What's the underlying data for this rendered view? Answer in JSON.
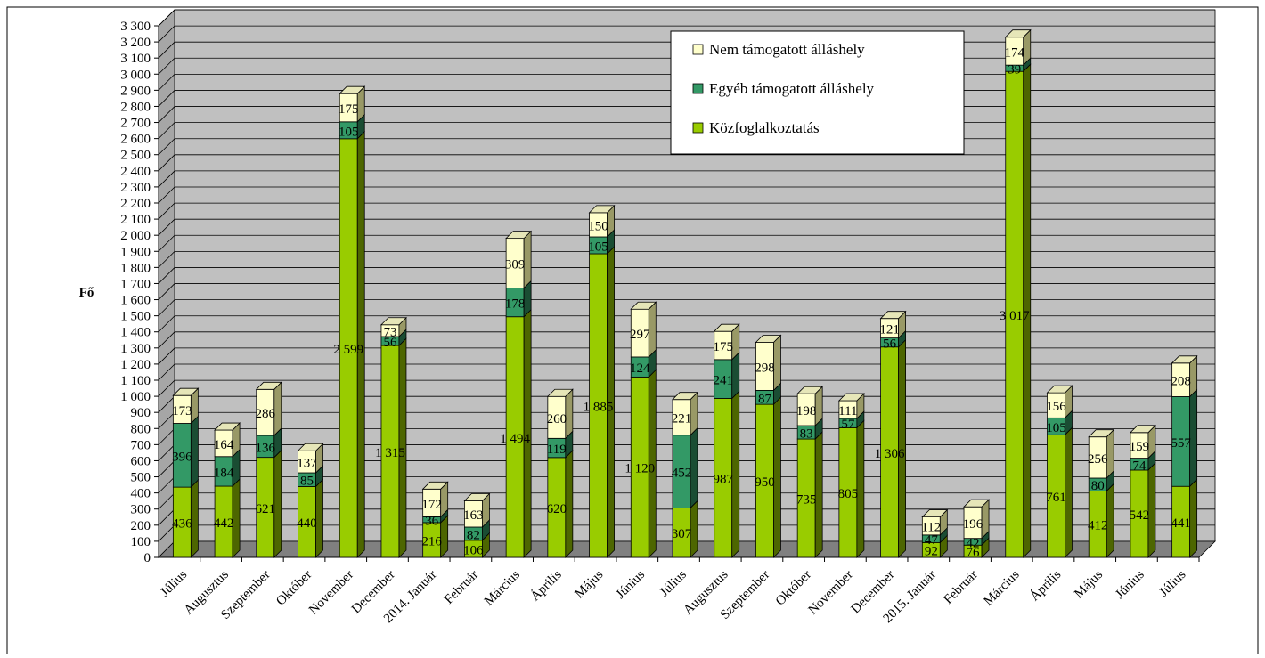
{
  "chart_data": {
    "type": "bar",
    "stacked": true,
    "three_d": true,
    "ylabel": "Fő",
    "xlabel": "",
    "ylim": [
      0,
      3300
    ],
    "ytick_step": 100,
    "grid": true,
    "legend_position": "top-right",
    "categories": [
      "Július",
      "Augusztus",
      "Szeptember",
      "Október",
      "November",
      "December",
      "2014. Január",
      "Február",
      "Március",
      "Április",
      "Május",
      "Június",
      "Július",
      "Augusztus",
      "Szeptember",
      "Október",
      "November",
      "December",
      "2015. Január",
      "Február",
      "Március",
      "Április",
      "Május",
      "Június",
      "Július"
    ],
    "series": [
      {
        "name": "Közfoglalkoztatás",
        "color": "#99cc00",
        "side_color": "#4d6600",
        "top_color": "#b8e04a",
        "values": [
          436,
          442,
          621,
          440,
          2599,
          1315,
          216,
          106,
          1494,
          620,
          1885,
          1120,
          307,
          987,
          950,
          735,
          805,
          1306,
          92,
          76,
          3017,
          761,
          412,
          542,
          441
        ],
        "labels": [
          "436",
          "442",
          "621",
          "440",
          "2 599",
          "1 315",
          "216",
          "106",
          "1 494",
          "620",
          "1 885",
          "1 120",
          "307",
          "987",
          "950",
          "735",
          "805",
          "1 306",
          "92",
          "76",
          "3 017",
          "761",
          "412",
          "542",
          "441"
        ]
      },
      {
        "name": "Egyéb támogatott álláshely",
        "color": "#339966",
        "side_color": "#1a4d33",
        "top_color": "#5cb388",
        "values": [
          396,
          184,
          136,
          85,
          105,
          56,
          36,
          82,
          178,
          119,
          105,
          124,
          452,
          241,
          87,
          83,
          57,
          56,
          47,
          42,
          39,
          105,
          80,
          74,
          557
        ],
        "labels": [
          "396",
          "184",
          "136",
          "85",
          "105",
          "56",
          "36",
          "82",
          "178",
          "119",
          "105",
          "124",
          "452",
          "241",
          "87",
          "83",
          "57",
          "56",
          "47",
          "42",
          "39",
          "105",
          "80",
          "74",
          "557"
        ]
      },
      {
        "name": "Nem támogatott álláshely",
        "color": "#ffffcc",
        "side_color": "#999966",
        "top_color": "#e6e6b8",
        "values": [
          173,
          164,
          286,
          137,
          175,
          73,
          172,
          163,
          309,
          260,
          150,
          297,
          221,
          175,
          298,
          198,
          111,
          121,
          112,
          196,
          174,
          156,
          256,
          159,
          208
        ],
        "labels": [
          "173",
          "164",
          "286",
          "137",
          "175",
          "73",
          "172",
          "163",
          "309",
          "260",
          "150",
          "297",
          "221",
          "175",
          "298",
          "198",
          "111",
          "121",
          "112",
          "196",
          "174",
          "156",
          "256",
          "159",
          "208"
        ]
      }
    ],
    "ytick_labels": [
      "0",
      "100",
      "200",
      "300",
      "400",
      "500",
      "600",
      "700",
      "800",
      "900",
      "1 000",
      "1 100",
      "1 200",
      "1 300",
      "1 400",
      "1 500",
      "1 600",
      "1 700",
      "1 800",
      "1 900",
      "2 000",
      "2 100",
      "2 200",
      "2 300",
      "2 400",
      "2 500",
      "2 600",
      "2 700",
      "2 800",
      "2 900",
      "3 000",
      "3 100",
      "3 200",
      "3 300"
    ],
    "legend": [
      "Nem támogatott álláshely",
      "Egyéb támogatott álláshely",
      "Közfoglalkoztatás"
    ],
    "colors": {
      "wall": "#c0c0c0",
      "floor": "#808080",
      "grid": "#000000"
    }
  }
}
